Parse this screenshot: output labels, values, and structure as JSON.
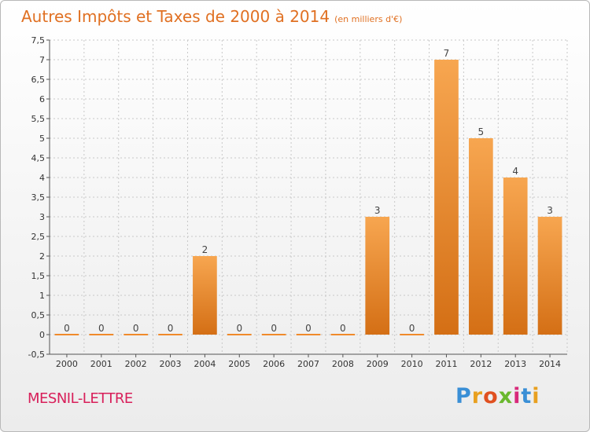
{
  "title": "Autres Impôts et Taxes de 2000 à 2014",
  "unit": "(en milliers d'€)",
  "commune": "MESNIL-LETTRE",
  "logo": {
    "letters": [
      "P",
      "r",
      "o",
      "x",
      "i",
      "t",
      "i"
    ],
    "colors": [
      "#3a8fd6",
      "#e8a020",
      "#e05020",
      "#6ab82e",
      "#d82a7a",
      "#3a8fd6",
      "#e8a020"
    ]
  },
  "colors": {
    "bar": "#f08a2a",
    "bar_light": "#f7a650",
    "bar_dark": "#d46f15",
    "grid": "#c8c8c8"
  },
  "chart_data": {
    "type": "bar",
    "categories": [
      "2000",
      "2001",
      "2002",
      "2003",
      "2004",
      "2005",
      "2006",
      "2007",
      "2008",
      "2009",
      "2010",
      "2011",
      "2012",
      "2013",
      "2014"
    ],
    "values": [
      0,
      0,
      0,
      0,
      2,
      0,
      0,
      0,
      0,
      3,
      0,
      7,
      5,
      4,
      3
    ],
    "value_labels": [
      "0",
      "0",
      "0",
      "0",
      "2",
      "0",
      "0",
      "0",
      "0",
      "3",
      "0",
      "7",
      "5",
      "4",
      "3"
    ],
    "yticks": [
      "-0,5",
      "0",
      "0,5",
      "1",
      "1,5",
      "2",
      "2,5",
      "3",
      "3,5",
      "4",
      "4,5",
      "5",
      "5,5",
      "6",
      "6,5",
      "7",
      "7,5"
    ],
    "ytick_values": [
      -0.5,
      0,
      0.5,
      1,
      1.5,
      2,
      2.5,
      3,
      3.5,
      4,
      4.5,
      5,
      5.5,
      6,
      6.5,
      7,
      7.5
    ],
    "ylim": [
      -0.5,
      7.5
    ],
    "grid": true
  }
}
